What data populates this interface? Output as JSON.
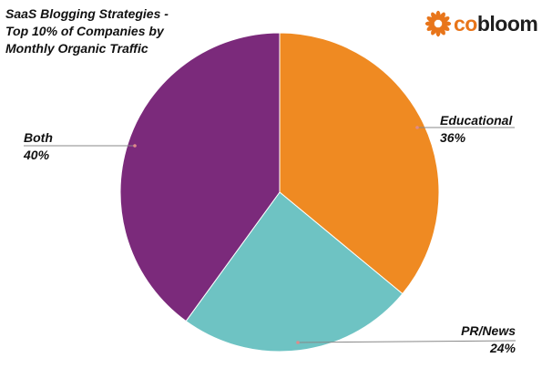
{
  "header": {
    "title_lines": [
      "SaaS Blogging Strategies -",
      "Top 10% of Companies by",
      "Monthly Organic Traffic"
    ]
  },
  "logo": {
    "text_prefix": "co",
    "text_main": "bloom",
    "brand_color": "#e8751a",
    "icon": "flower-icon"
  },
  "chart_data": {
    "type": "pie",
    "title": "SaaS Blogging Strategies - Top 10% of Companies by Monthly Organic Traffic",
    "start_angle_deg": 0,
    "direction": "clockwise",
    "slices": [
      {
        "label": "Educational",
        "value": 36,
        "display": "36%",
        "color": "#ef8a22"
      },
      {
        "label": "PR/News",
        "value": 24,
        "display": "24%",
        "color": "#6ec3c3"
      },
      {
        "label": "Both",
        "value": 40,
        "display": "40%",
        "color": "#7b2a7b"
      }
    ]
  }
}
